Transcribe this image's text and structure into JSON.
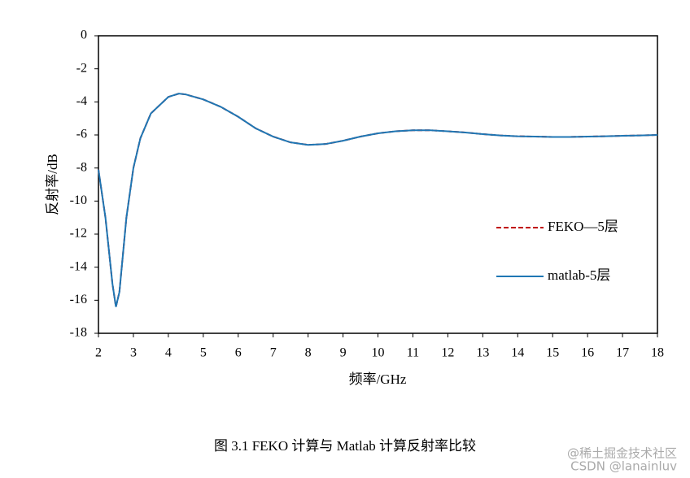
{
  "chart_data": {
    "type": "line",
    "x_label": "频率/GHz",
    "y_label": "反射率/dB",
    "caption": "图 3.1 FEKO 计算与 Matlab 计算反射率比较",
    "watermark": [
      "@稀土掘金技术社区",
      "CSDN @lanainluv"
    ],
    "x": [
      2,
      2.2,
      2.4,
      2.5,
      2.6,
      2.8,
      3,
      3.2,
      3.5,
      4,
      4.3,
      4.5,
      5,
      5.5,
      6,
      6.5,
      7,
      7.5,
      8,
      8.5,
      9,
      9.5,
      10,
      10.5,
      11,
      11.5,
      12,
      12.5,
      13,
      13.5,
      14,
      14.5,
      15,
      15.5,
      16,
      16.5,
      17,
      17.5,
      18
    ],
    "series": [
      {
        "name": "FEKO—5层",
        "color": "#c00000",
        "dashed": true,
        "values": [
          -8.1,
          -11,
          -15,
          -16.4,
          -15.5,
          -11,
          -8,
          -6.2,
          -4.7,
          -3.7,
          -3.5,
          -3.55,
          -3.85,
          -4.3,
          -4.9,
          -5.6,
          -6.1,
          -6.45,
          -6.6,
          -6.55,
          -6.35,
          -6.1,
          -5.9,
          -5.78,
          -5.72,
          -5.72,
          -5.78,
          -5.85,
          -5.95,
          -6.03,
          -6.08,
          -6.1,
          -6.12,
          -6.12,
          -6.1,
          -6.08,
          -6.05,
          -6.03,
          -6
        ]
      },
      {
        "name": "matlab-5层",
        "color": "#1f77b4",
        "dashed": false,
        "values": [
          -8.1,
          -11,
          -15,
          -16.4,
          -15.5,
          -11,
          -8,
          -6.2,
          -4.7,
          -3.7,
          -3.5,
          -3.55,
          -3.85,
          -4.3,
          -4.9,
          -5.6,
          -6.1,
          -6.45,
          -6.6,
          -6.55,
          -6.35,
          -6.1,
          -5.9,
          -5.78,
          -5.72,
          -5.72,
          -5.78,
          -5.85,
          -5.95,
          -6.03,
          -6.08,
          -6.1,
          -6.12,
          -6.12,
          -6.1,
          -6.08,
          -6.05,
          -6.03,
          -6
        ]
      }
    ],
    "xlim": [
      2,
      18
    ],
    "xticks": [
      2,
      3,
      4,
      5,
      6,
      7,
      8,
      9,
      10,
      11,
      12,
      13,
      14,
      15,
      16,
      17,
      18
    ],
    "ylim": [
      -18,
      0
    ],
    "yticks": [
      0,
      -2,
      -4,
      -6,
      -8,
      -10,
      -12,
      -14,
      -16,
      -18
    ],
    "grid": false,
    "legend_position": "right"
  }
}
